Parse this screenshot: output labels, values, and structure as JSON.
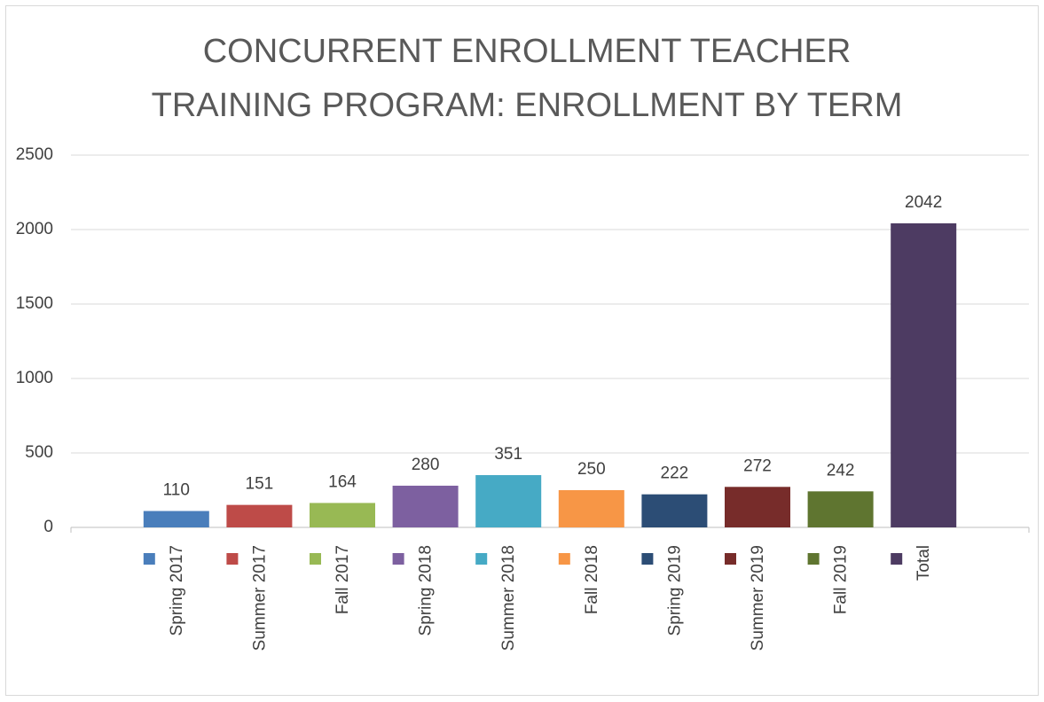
{
  "chart_data": {
    "type": "bar",
    "title": [
      "CONCURRENT ENROLLMENT TEACHER",
      "TRAINING PROGRAM:  ENROLLMENT BY TERM"
    ],
    "categories": [
      "Spring 2017",
      "Summer 2017",
      "Fall 2017",
      "Spring 2018",
      "Summer 2018",
      "Fall 2018",
      "Spring 2019",
      "Summer 2019",
      "Fall 2019",
      "Total"
    ],
    "values": [
      110,
      151,
      164,
      280,
      351,
      250,
      222,
      272,
      242,
      2042
    ],
    "colors": [
      "#4a7ebb",
      "#be4b48",
      "#98b954",
      "#7d60a0",
      "#46aac5",
      "#f79646",
      "#2c4d75",
      "#772c2a",
      "#5f7530",
      "#4d3b62"
    ],
    "ylim": [
      0,
      2500
    ],
    "yticks": [
      0,
      500,
      1000,
      1500,
      2000,
      2500
    ],
    "grid": true
  }
}
